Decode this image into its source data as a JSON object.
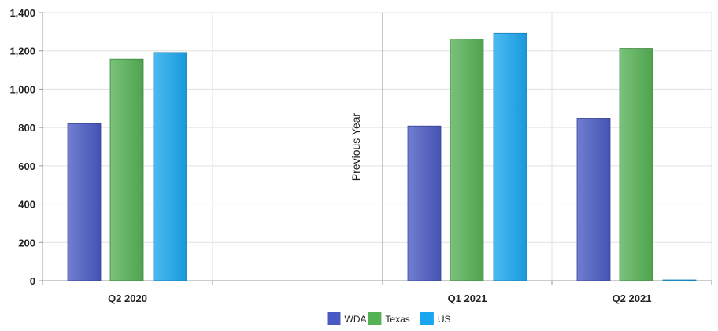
{
  "chart_data": {
    "type": "bar",
    "categories": [
      "Q2 2020",
      "",
      "Q1 2021",
      "Q2 2021"
    ],
    "series": [
      {
        "name": "WDA",
        "color": "#4a5ac4",
        "values": [
          820,
          null,
          808,
          848
        ]
      },
      {
        "name": "Texas",
        "color": "#55b155",
        "values": [
          1157,
          null,
          1262,
          1213
        ]
      },
      {
        "name": "US",
        "color": "#1aa6ee",
        "values": [
          1191,
          null,
          1292,
          2
        ]
      }
    ],
    "ylim": [
      0,
      1400
    ],
    "yticks": [
      "0",
      "200",
      "400",
      "600",
      "800",
      "1,000",
      "1,200",
      "1,400"
    ],
    "yvalues": [
      0,
      200,
      400,
      600,
      800,
      1000,
      1200,
      1400
    ],
    "annotation": "Previous Year",
    "grid": true,
    "legend_position": "bottom"
  }
}
